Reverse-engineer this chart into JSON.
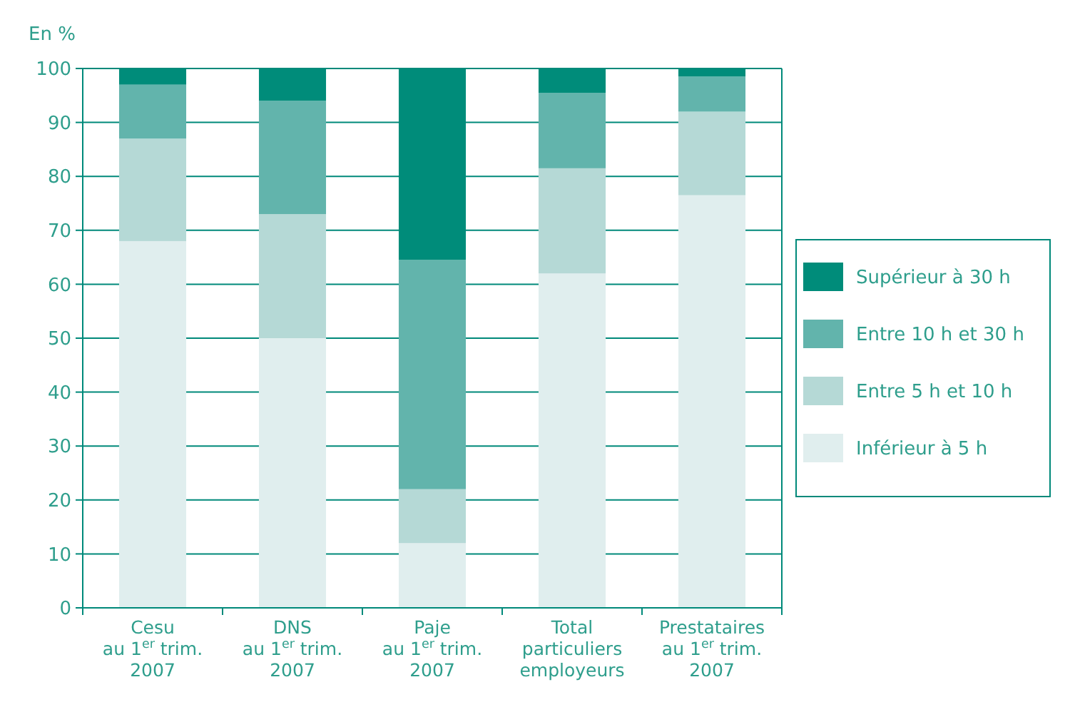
{
  "chart_data": {
    "type": "bar",
    "stacked": true,
    "ylabel": "En %",
    "categories": [
      "Cesu\nau 1$^{er}$ trim.\n2007",
      "DNS\nau 1$^{er}$ trim.\n2007",
      "Paje\nau 1$^{er}$ trim.\n2007",
      "Total\nparticuliers\nemployeurs",
      "Prestataires\nau 1$^{er}$ trim.\n2007"
    ],
    "series": [
      {
        "name": "Inférieur à 5 h",
        "color": "#e0eeee",
        "values": [
          68,
          50,
          12,
          62,
          76.5
        ]
      },
      {
        "name": "Entre 5 h et 10 h",
        "color": "#b5d9d6",
        "values": [
          19,
          23,
          10,
          19.5,
          15.5
        ]
      },
      {
        "name": "Entre 10 h et 30 h",
        "color": "#62b4ac",
        "values": [
          10,
          21,
          42.5,
          14,
          6.5
        ]
      },
      {
        "name": "Supérieur à 30 h",
        "color": "#008c7a",
        "values": [
          3,
          6,
          35.5,
          4.5,
          1.5
        ]
      }
    ],
    "ylim": [
      0,
      100
    ],
    "yticks": [
      0,
      10,
      20,
      30,
      40,
      50,
      60,
      70,
      80,
      90,
      100
    ],
    "grid": "y",
    "legend": "right"
  }
}
